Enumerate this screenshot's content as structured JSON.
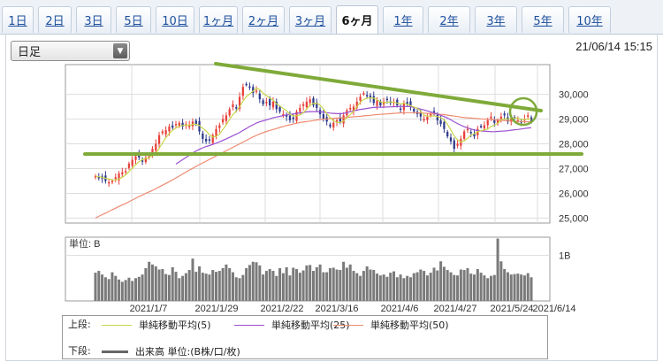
{
  "tabs": [
    {
      "label": "1日",
      "active": false
    },
    {
      "label": "2日",
      "active": false
    },
    {
      "label": "3日",
      "active": false
    },
    {
      "label": "5日",
      "active": false
    },
    {
      "label": "10日",
      "active": false
    },
    {
      "label": "1ヶ月",
      "active": false
    },
    {
      "label": "2ヶ月",
      "active": false
    },
    {
      "label": "3ヶ月",
      "active": false
    },
    {
      "label": "6ヶ月",
      "active": true
    },
    {
      "label": "1年",
      "active": false
    },
    {
      "label": "2年",
      "active": false
    },
    {
      "label": "3年",
      "active": false
    },
    {
      "label": "5年",
      "active": false
    },
    {
      "label": "10年",
      "active": false
    }
  ],
  "period_select": {
    "value": "日足"
  },
  "timestamp": "21/06/14 15:15",
  "colors": {
    "up": "#e8403a",
    "down": "#2d3a8c",
    "ma5": "#c9d64a",
    "ma25": "#9b4fd1",
    "ma50": "#ef8a70",
    "trend": "#7faa3a",
    "volume": "#7a7a7a"
  },
  "chart_data": [
    {
      "type": "candlestick",
      "title": "",
      "x_ticks": [
        "2021/1/7",
        "2021/1/29",
        "2021/2/22",
        "2021/3/16",
        "2021/4/6",
        "2021/4/27",
        "2021/5/24",
        "2021/6/14"
      ],
      "y_ticks": [
        "30,000",
        "29,000",
        "28,000",
        "27,000",
        "26,000",
        "25,000"
      ],
      "ylim": [
        24800,
        31200
      ],
      "grid": true,
      "close": [
        26700,
        26650,
        26600,
        26500,
        26450,
        26500,
        26650,
        26800,
        26850,
        26900,
        27200,
        27350,
        27500,
        27450,
        27300,
        27450,
        27500,
        27800,
        28000,
        28350,
        28500,
        28550,
        28700,
        28650,
        28800,
        28850,
        28700,
        28800,
        28750,
        28900,
        28800,
        28500,
        28200,
        28100,
        28150,
        28350,
        28600,
        28750,
        29000,
        29150,
        29400,
        29600,
        29450,
        29900,
        30300,
        30400,
        30300,
        30050,
        30150,
        29800,
        29600,
        29700,
        29550,
        29700,
        29400,
        29300,
        29200,
        29100,
        28950,
        29000,
        29300,
        29450,
        29600,
        29700,
        29800,
        29550,
        29450,
        29200,
        29000,
        28900,
        28700,
        28850,
        28950,
        28900,
        29150,
        29350,
        29450,
        29500,
        29700,
        29900,
        30050,
        29950,
        29850,
        29650,
        29750,
        29550,
        29700,
        29800,
        29650,
        29700,
        29550,
        29400,
        29650,
        29600,
        29500,
        29300,
        29200,
        29100,
        29000,
        29100,
        29200,
        29250,
        28950,
        28800,
        28600,
        28300,
        28100,
        27800,
        28000,
        28200,
        28500,
        28600,
        28450,
        28300,
        28600,
        28700,
        28750,
        28950,
        29100,
        28850,
        28950,
        29100,
        29150,
        28900,
        29000,
        29050,
        28950,
        28900,
        29000,
        29150,
        28900
      ],
      "ma5": [
        26700,
        26670,
        26650,
        26610,
        26580,
        26540,
        26540,
        26580,
        26650,
        26740,
        26880,
        27020,
        27160,
        27280,
        27360,
        27410,
        27440,
        27520,
        27610,
        27820,
        28040,
        28240,
        28420,
        28550,
        28640,
        28710,
        28740,
        28760,
        28750,
        28790,
        28790,
        28740,
        28630,
        28520,
        28370,
        28270,
        28300,
        28390,
        28580,
        28770,
        28980,
        29180,
        29320,
        29500,
        29730,
        29910,
        30010,
        30130,
        30240,
        30200,
        30040,
        29950,
        29850,
        29770,
        29610,
        29530,
        29430,
        29340,
        29190,
        29130,
        29130,
        29170,
        29250,
        29410,
        29570,
        29630,
        29640,
        29560,
        29410,
        29220,
        29050,
        28930,
        28870,
        28860,
        28920,
        29050,
        29180,
        29320,
        29500,
        29680,
        29790,
        29840,
        29860,
        29840,
        29780,
        29700,
        29660,
        29680,
        29690,
        29680,
        29640,
        29610,
        29640,
        29590,
        29540,
        29490,
        29430,
        29330,
        29160,
        29120,
        29120,
        29130,
        29100,
        29060,
        28970,
        28790,
        28560,
        28320,
        28160,
        28080,
        28120,
        28220,
        28350,
        28410,
        28490,
        28530,
        28560,
        28600,
        28700,
        28750,
        28830,
        28980,
        29010,
        29000,
        29020,
        29040,
        29040,
        28980,
        28980,
        29010,
        28990
      ],
      "ma25": [
        null,
        null,
        null,
        null,
        null,
        null,
        null,
        null,
        null,
        null,
        null,
        null,
        null,
        null,
        null,
        null,
        null,
        null,
        null,
        null,
        null,
        null,
        null,
        null,
        27180,
        27270,
        27360,
        27450,
        27540,
        27630,
        27710,
        27780,
        27840,
        27890,
        27930,
        27980,
        28030,
        28080,
        28140,
        28200,
        28260,
        28330,
        28390,
        28460,
        28540,
        28620,
        28700,
        28770,
        28840,
        28890,
        28930,
        28970,
        29010,
        29050,
        29080,
        29110,
        29140,
        29170,
        29190,
        29210,
        29230,
        29250,
        29270,
        29290,
        29300,
        29300,
        29300,
        29290,
        29280,
        29260,
        29240,
        29230,
        29220,
        29220,
        29230,
        29260,
        29300,
        29330,
        29360,
        29390,
        29410,
        29430,
        29450,
        29470,
        29480,
        29480,
        29480,
        29490,
        29490,
        29500,
        29500,
        29510,
        29510,
        29510,
        29500,
        29470,
        29440,
        29400,
        29370,
        29330,
        29290,
        29250,
        29200,
        29150,
        29100,
        29040,
        28970,
        28890,
        28820,
        28750,
        28690,
        28640,
        28600,
        28560,
        28540,
        28520,
        28510,
        28500,
        28490,
        28490,
        28500,
        28510,
        28520,
        28530,
        28550,
        28570,
        28580,
        28600,
        28620,
        28640,
        28650
      ],
      "ma50": [
        25000,
        25070,
        25140,
        25200,
        25270,
        25340,
        25400,
        25470,
        25530,
        25590,
        25660,
        25730,
        25800,
        25870,
        25930,
        26000,
        26060,
        26120,
        26190,
        26260,
        26330,
        26400,
        26470,
        26550,
        26620,
        26700,
        26780,
        26860,
        26940,
        27010,
        27090,
        27160,
        27230,
        27300,
        27370,
        27440,
        27510,
        27580,
        27650,
        27720,
        27790,
        27860,
        27930,
        28000,
        28070,
        28140,
        28210,
        28280,
        28340,
        28400,
        28450,
        28500,
        28540,
        28580,
        28620,
        28660,
        28700,
        28740,
        28770,
        28800,
        28830,
        28860,
        28880,
        28900,
        28920,
        28940,
        28960,
        28980,
        29000,
        29010,
        29020,
        29030,
        29040,
        29050,
        29060,
        29070,
        29080,
        29090,
        29100,
        29110,
        29130,
        29140,
        29150,
        29170,
        29180,
        29190,
        29200,
        29210,
        29220,
        29230,
        29240,
        29250,
        29260,
        29260,
        29260,
        29260,
        29250,
        29250,
        29240,
        29230,
        29220,
        29210,
        29200,
        29190,
        29180,
        29160,
        29140,
        29120,
        29100,
        29080,
        29060,
        29050,
        29040,
        29030,
        29020,
        29010,
        29000,
        28990,
        28980,
        28970,
        28960,
        28950,
        28940,
        28930,
        28920,
        28910,
        28900,
        28900,
        28890,
        28890,
        28880
      ],
      "annotations": {
        "resistance_line": [
          [
            244,
            72
          ],
          [
            612,
            125
          ]
        ],
        "support_line": [
          [
            96,
            174
          ],
          [
            658,
            174
          ]
        ],
        "circle_center": [
          592,
          126
        ]
      }
    },
    {
      "type": "bar",
      "title": "",
      "ylabel": "単位: B",
      "y_ticks": [
        "1B"
      ],
      "values": [
        0.62,
        0.66,
        0.58,
        0.52,
        0.48,
        0.63,
        0.55,
        0.47,
        0.42,
        0.46,
        0.51,
        0.44,
        0.5,
        0.53,
        0.58,
        0.72,
        0.86,
        0.8,
        0.76,
        0.69,
        0.7,
        0.59,
        0.57,
        0.74,
        0.64,
        0.5,
        0.55,
        0.61,
        0.68,
        0.93,
        0.64,
        0.76,
        0.62,
        0.6,
        0.58,
        0.68,
        0.64,
        0.66,
        0.72,
        0.8,
        0.72,
        0.63,
        0.52,
        0.5,
        0.57,
        0.72,
        0.79,
        0.86,
        0.85,
        0.78,
        0.58,
        0.66,
        0.7,
        0.66,
        0.55,
        0.72,
        0.61,
        0.74,
        0.56,
        0.73,
        0.7,
        0.62,
        0.67,
        0.78,
        0.79,
        0.66,
        0.74,
        0.8,
        0.63,
        0.63,
        0.72,
        0.73,
        0.69,
        0.68,
        0.86,
        0.73,
        0.8,
        0.66,
        0.61,
        0.55,
        0.66,
        0.76,
        0.69,
        0.68,
        0.6,
        0.56,
        0.58,
        0.53,
        0.62,
        0.65,
        0.52,
        0.58,
        0.5,
        0.55,
        0.52,
        0.61,
        0.63,
        0.69,
        0.66,
        0.56,
        0.62,
        0.73,
        0.67,
        0.87,
        0.75,
        0.68,
        0.63,
        0.57,
        0.56,
        0.69,
        0.68,
        0.72,
        0.6,
        0.58,
        0.7,
        0.62,
        0.56,
        0.5,
        0.55,
        0.57,
        1.37,
        0.87,
        0.7,
        0.63,
        0.58,
        0.59,
        0.6,
        0.58,
        0.56,
        0.61,
        0.52
      ]
    }
  ],
  "legend": {
    "upper_label": "上段:",
    "lower_label": "下段:",
    "ma5": "単純移動平均(5)",
    "ma25": "単純移動平均(25)",
    "ma50": "単純移動平均(50)",
    "volume": "出来高 単位:(B株/口/枚)"
  }
}
